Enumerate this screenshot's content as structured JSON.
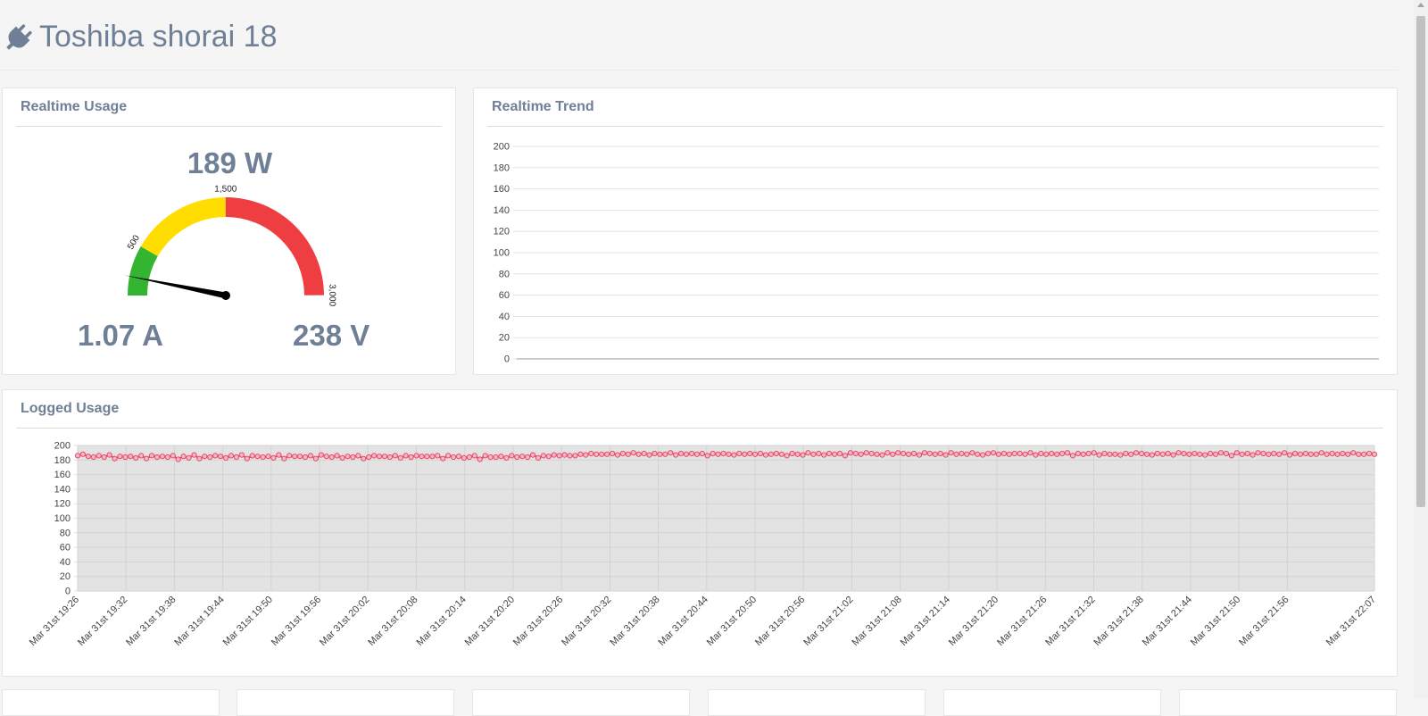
{
  "page": {
    "title": "Toshiba shorai 18",
    "icon": "plug-icon"
  },
  "realtime": {
    "title": "Realtime Usage",
    "watts_label": "189 W",
    "amps_label": "1.07 A",
    "volts_label": "238 V",
    "gauge": {
      "min": 0,
      "max": 3000,
      "value": 189,
      "bands": [
        {
          "from": 0,
          "to": 500,
          "color": "#33b532"
        },
        {
          "from": 500,
          "to": 1500,
          "color": "#ffdd00"
        },
        {
          "from": 1500,
          "to": 3000,
          "color": "#ef3e42"
        }
      ],
      "tick_labels": [
        "500",
        "1,500",
        "3,000"
      ],
      "tick_values": [
        500,
        1500,
        3000
      ]
    }
  },
  "trend": {
    "title": "Realtime Trend",
    "chart_data": {
      "type": "line",
      "ylim": [
        0,
        200
      ],
      "yticks": [
        "0",
        "20",
        "40",
        "60",
        "80",
        "100",
        "120",
        "140",
        "160",
        "180",
        "200"
      ],
      "series": []
    }
  },
  "logged": {
    "title": "Logged Usage",
    "chart_data": {
      "type": "area",
      "ylim": [
        0,
        200
      ],
      "yticks": [
        "0",
        "20",
        "40",
        "60",
        "80",
        "100",
        "120",
        "140",
        "160",
        "180",
        "200"
      ],
      "xlabels": [
        "Mar 31st 19:26",
        "Mar 31st 19:32",
        "Mar 31st 19:38",
        "Mar 31st 19:44",
        "Mar 31st 19:50",
        "Mar 31st 19:56",
        "Mar 31st 20:02",
        "Mar 31st 20:08",
        "Mar 31st 20:14",
        "Mar 31st 20:20",
        "Mar 31st 20:26",
        "Mar 31st 20:32",
        "Mar 31st 20:38",
        "Mar 31st 20:44",
        "Mar 31st 20:50",
        "Mar 31st 20:56",
        "Mar 31st 21:02",
        "Mar 31st 21:08",
        "Mar 31st 21:14",
        "Mar 31st 21:20",
        "Mar 31st 21:26",
        "Mar 31st 21:32",
        "Mar 31st 21:38",
        "Mar 31st 21:44",
        "Mar 31st 21:50",
        "Mar 31st 21:56",
        "Mar 31st 22:07"
      ],
      "series_start": "19:26",
      "series_end": "22:07",
      "values": [
        186,
        188,
        185,
        184,
        186,
        184,
        187,
        182,
        185,
        184,
        185,
        183,
        186,
        182,
        186,
        184,
        185,
        184,
        186,
        181,
        185,
        183,
        187,
        182,
        185,
        184,
        186,
        185,
        183,
        186,
        184,
        187,
        182,
        186,
        185,
        184,
        185,
        183,
        187,
        182,
        186,
        185,
        185,
        184,
        186,
        182,
        187,
        185,
        184,
        186,
        183,
        185,
        184,
        186,
        182,
        184,
        186,
        185,
        185,
        184,
        186,
        183,
        186,
        184,
        186,
        185,
        185,
        185,
        186,
        182,
        186,
        184,
        185,
        183,
        184,
        186,
        181,
        186,
        184,
        184,
        185,
        183,
        186,
        184,
        185,
        184,
        187,
        183,
        186,
        185,
        187,
        186,
        187,
        186,
        186,
        188,
        187,
        189,
        188,
        188,
        188,
        189,
        187,
        189,
        188,
        190,
        188,
        189,
        187,
        189,
        188,
        188,
        190,
        187,
        189,
        188,
        189,
        188,
        189,
        186,
        189,
        188,
        189,
        188,
        187,
        189,
        188,
        189,
        188,
        189,
        187,
        188,
        189,
        188,
        186,
        189,
        188,
        187,
        190,
        188,
        189,
        187,
        189,
        188,
        189,
        186,
        190,
        189,
        188,
        190,
        189,
        188,
        187,
        190,
        188,
        190,
        189,
        188,
        189,
        187,
        190,
        189,
        188,
        189,
        187,
        190,
        188,
        189,
        188,
        190,
        188,
        187,
        189,
        190,
        188,
        189,
        188,
        189,
        189,
        188,
        190,
        187,
        189,
        188,
        189,
        188,
        189,
        190,
        186,
        189,
        188,
        189,
        190,
        187,
        189,
        188,
        188,
        187,
        189,
        188,
        190,
        189,
        188,
        187,
        189,
        188,
        189,
        187,
        190,
        189,
        188,
        189,
        188,
        187,
        189,
        188,
        190,
        189,
        186,
        190,
        188,
        189,
        187,
        190,
        189,
        188,
        189,
        188,
        190,
        187,
        189,
        188,
        189,
        188,
        188,
        190,
        188,
        189,
        188,
        189,
        188,
        190,
        188,
        188,
        189,
        188
      ]
    }
  },
  "colors": {
    "line": "#e8496a",
    "area": "#e3e3e3",
    "grid": "#d3d3d3",
    "text": "#6f7f96",
    "axis_text": "#444444"
  }
}
